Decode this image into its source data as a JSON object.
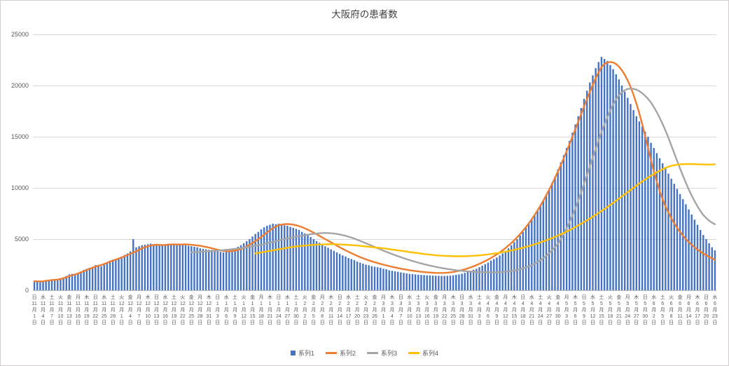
{
  "chart_data": {
    "type": "combo",
    "title": "大阪府の患者数",
    "ylim": [
      0,
      25000
    ],
    "y_ticks": [
      0,
      5000,
      10000,
      15000,
      20000,
      25000
    ],
    "n_days": 235,
    "x_label_every_days": 3,
    "month_suffix": "月",
    "day_suffix": "日",
    "gridlines": true,
    "legend_position": "bottom",
    "colors": {
      "axis_text": "#595959",
      "gridline": "#D9D9D9",
      "axis_line": "#BDBDBD",
      "background": "#FFFFFF",
      "border": "#D0CECE"
    },
    "x_ticks": {
      "weekday": [
        "日",
        "水",
        "土",
        "火",
        "金",
        "月",
        "木",
        "日",
        "水",
        "土",
        "火",
        "金",
        "月",
        "木",
        "日",
        "水",
        "土",
        "火",
        "金",
        "月",
        "木",
        "日",
        "水",
        "土",
        "火",
        "金",
        "月",
        "木",
        "日",
        "水",
        "土",
        "火",
        "金",
        "月",
        "木",
        "日",
        "水",
        "土",
        "火",
        "金",
        "月",
        "木",
        "日",
        "水",
        "土",
        "火",
        "金",
        "月",
        "木",
        "日",
        "水",
        "土",
        "火",
        "金",
        "月",
        "木",
        "日",
        "水",
        "土",
        "火",
        "金",
        "月",
        "木",
        "日",
        "水",
        "土",
        "火",
        "金",
        "月",
        "木",
        "日",
        "水",
        "土",
        "火",
        "金",
        "月",
        "木",
        "日",
        "水"
      ],
      "month": [
        11,
        11,
        11,
        11,
        11,
        11,
        11,
        11,
        11,
        11,
        12,
        12,
        12,
        12,
        12,
        12,
        12,
        12,
        12,
        12,
        12,
        1,
        1,
        1,
        1,
        1,
        1,
        1,
        1,
        1,
        1,
        2,
        2,
        2,
        2,
        2,
        2,
        2,
        2,
        2,
        3,
        3,
        3,
        3,
        3,
        3,
        3,
        3,
        3,
        3,
        3,
        4,
        4,
        4,
        4,
        4,
        4,
        4,
        4,
        4,
        4,
        5,
        5,
        5,
        5,
        5,
        5,
        5,
        5,
        5,
        5,
        6,
        6,
        6,
        6,
        6,
        6,
        6,
        6
      ],
      "day": [
        1,
        4,
        7,
        10,
        13,
        16,
        19,
        22,
        25,
        28,
        1,
        4,
        7,
        10,
        13,
        16,
        19,
        22,
        25,
        28,
        31,
        3,
        6,
        9,
        12,
        15,
        18,
        21,
        24,
        27,
        30,
        2,
        5,
        8,
        11,
        14,
        17,
        20,
        23,
        26,
        1,
        4,
        7,
        10,
        13,
        16,
        19,
        22,
        25,
        28,
        31,
        3,
        6,
        9,
        12,
        15,
        18,
        21,
        24,
        27,
        30,
        3,
        6,
        9,
        12,
        15,
        18,
        21,
        24,
        27,
        30,
        2,
        5,
        8,
        11,
        14,
        17,
        20,
        23
      ]
    },
    "series": [
      {
        "name": "系列1",
        "type": "bar",
        "color": "#4472C4",
        "start": 0,
        "values": [
          900,
          850,
          800,
          870,
          950,
          1000,
          1050,
          1000,
          980,
          1100,
          1250,
          1400,
          1550,
          1600,
          1550,
          1700,
          1850,
          2000,
          2100,
          2200,
          2300,
          2450,
          2400,
          2350,
          2600,
          2750,
          2900,
          3000,
          3050,
          3150,
          3300,
          3450,
          3600,
          3800,
          5000,
          4200,
          4300,
          4400,
          4450,
          4500,
          4550,
          4500,
          4450,
          4400,
          4450,
          4500,
          4550,
          4500,
          4450,
          4500,
          4550,
          4500,
          4400,
          4350,
          4300,
          4250,
          4200,
          4100,
          4050,
          4000,
          3950,
          3950,
          3900,
          3800,
          3750,
          3700,
          3750,
          3850,
          3950,
          4100,
          4250,
          4400,
          4600,
          4800,
          5000,
          5250,
          5500,
          5700,
          5950,
          6150,
          6300,
          6400,
          6500,
          6450,
          6500,
          6400,
          6350,
          6300,
          6200,
          6100,
          6000,
          5900,
          5700,
          5550,
          5400,
          5200,
          5000,
          4800,
          4650,
          4450,
          4300,
          4150,
          4000,
          3850,
          3700,
          3550,
          3400,
          3300,
          3150,
          3050,
          2950,
          2800,
          2700,
          2600,
          2500,
          2450,
          2350,
          2300,
          2250,
          2200,
          2100,
          2050,
          1950,
          1900,
          1850,
          1800,
          1750,
          1700,
          1650,
          1600,
          1580,
          1550,
          1520,
          1500,
          1480,
          1460,
          1450,
          1430,
          1420,
          1410,
          1400,
          1400,
          1410,
          1430,
          1460,
          1500,
          1550,
          1620,
          1700,
          1800,
          1900,
          2000,
          2100,
          2250,
          2400,
          2550,
          2700,
          2900,
          3050,
          3200,
          3400,
          3600,
          3850,
          4100,
          4400,
          4700,
          5000,
          5350,
          5700,
          6100,
          6500,
          6900,
          7300,
          7800,
          8300,
          8800,
          9300,
          9900,
          10500,
          11100,
          11800,
          12500,
          13200,
          13900,
          14600,
          15400,
          16200,
          17000,
          17800,
          18700,
          19500,
          20300,
          21000,
          21700,
          22300,
          22800,
          22600,
          22400,
          22000,
          21600,
          21100,
          20600,
          20000,
          19400,
          18800,
          18200,
          17600,
          17000,
          16500,
          16000,
          15500,
          15000,
          14400,
          13900,
          13400,
          12900,
          12400,
          11900,
          11400,
          10900,
          10400,
          9900,
          9400,
          8900,
          8400,
          7900,
          7400,
          6900,
          6400,
          5900,
          5400,
          5000,
          4600,
          4200,
          3900
        ]
      },
      {
        "name": "系列2",
        "type": "line",
        "color": "#ED7D31",
        "start": 0,
        "values": [
          900,
          880,
          870,
          880,
          920,
          960,
          1000,
          1020,
          1050,
          1100,
          1180,
          1280,
          1380,
          1470,
          1550,
          1640,
          1750,
          1870,
          1980,
          2090,
          2200,
          2320,
          2400,
          2470,
          2570,
          2680,
          2790,
          2900,
          3000,
          3100,
          3200,
          3320,
          3440,
          3560,
          3680,
          3800,
          3950,
          4100,
          4200,
          4300,
          4380,
          4420,
          4450,
          4430,
          4420,
          4430,
          4450,
          4470,
          4490,
          4480,
          4470,
          4480,
          4490,
          4470,
          4440,
          4410,
          4380,
          4340,
          4290,
          4230,
          4170,
          4100,
          4030,
          3960,
          3900,
          3850,
          3820,
          3810,
          3830,
          3870,
          3940,
          4030,
          4150,
          4290,
          4450,
          4620,
          4800,
          5000,
          5200,
          5420,
          5650,
          5870,
          6060,
          6220,
          6340,
          6420,
          6460,
          6470,
          6450,
          6410,
          6350,
          6270,
          6170,
          6050,
          5920,
          5780,
          5630,
          5480,
          5320,
          5160,
          5000,
          4840,
          4680,
          4520,
          4360,
          4200,
          4050,
          3900,
          3760,
          3620,
          3490,
          3360,
          3240,
          3130,
          3020,
          2920,
          2830,
          2740,
          2660,
          2580,
          2500,
          2430,
          2360,
          2290,
          2230,
          2170,
          2110,
          2060,
          2010,
          1960,
          1920,
          1880,
          1840,
          1810,
          1780,
          1750,
          1730,
          1710,
          1700,
          1690,
          1690,
          1700,
          1720,
          1750,
          1790,
          1840,
          1900,
          1970,
          2050,
          2140,
          2240,
          2350,
          2460,
          2580,
          2710,
          2850,
          3000,
          3160,
          3330,
          3510,
          3700,
          3910,
          4130,
          4370,
          4620,
          4890,
          5180,
          5490,
          5820,
          6170,
          6540,
          6940,
          7360,
          7800,
          8270,
          8760,
          9280,
          9820,
          10390,
          10980,
          11600,
          12240,
          12900,
          13580,
          14280,
          15000,
          15730,
          16470,
          17210,
          17950,
          18680,
          19390,
          20070,
          20710,
          21290,
          21800,
          22100,
          22250,
          22300,
          22250,
          22100,
          21850,
          21500,
          21050,
          20500,
          19850,
          19100,
          18250,
          17300,
          16250,
          15100,
          13900,
          12700,
          11600,
          10600,
          9700,
          8900,
          8200,
          7600,
          7050,
          6550,
          6100,
          5700,
          5340,
          5010,
          4710,
          4440,
          4200,
          3980,
          3780,
          3600,
          3430,
          3270,
          3120,
          2980
        ]
      },
      {
        "name": "系列3",
        "type": "line",
        "color": "#A5A5A5",
        "start": 54,
        "values": [
          3700,
          3720,
          3740,
          3760,
          3780,
          3800,
          3820,
          3840,
          3860,
          3880,
          3900,
          3920,
          3950,
          3980,
          4010,
          4040,
          4080,
          4120,
          4160,
          4200,
          4250,
          4300,
          4350,
          4400,
          4460,
          4520,
          4580,
          4650,
          4720,
          4790,
          4860,
          4930,
          5000,
          5060,
          5120,
          5180,
          5230,
          5280,
          5330,
          5380,
          5430,
          5470,
          5510,
          5540,
          5570,
          5590,
          5600,
          5590,
          5570,
          5540,
          5500,
          5450,
          5390,
          5320,
          5240,
          5150,
          5050,
          4940,
          4830,
          4710,
          4590,
          4470,
          4350,
          4230,
          4110,
          3990,
          3870,
          3760,
          3650,
          3540,
          3430,
          3330,
          3230,
          3130,
          3040,
          2950,
          2860,
          2780,
          2700,
          2620,
          2550,
          2480,
          2410,
          2350,
          2290,
          2230,
          2180,
          2130,
          2080,
          2040,
          2000,
          1960,
          1930,
          1900,
          1870,
          1850,
          1830,
          1810,
          1790,
          1780,
          1770,
          1760,
          1750,
          1750,
          1750,
          1760,
          1770,
          1790,
          1810,
          1840,
          1880,
          1930,
          1990,
          2060,
          2140,
          2230,
          2340,
          2460,
          2600,
          2760,
          2940,
          3140,
          3370,
          3620,
          3900,
          4210,
          4550,
          5000,
          5500,
          6050,
          6650,
          7300,
          8000,
          8750,
          9550,
          10400,
          11250,
          12100,
          12950,
          13800,
          14650,
          15450,
          16200,
          16900,
          17550,
          18150,
          18650,
          19050,
          19350,
          19550,
          19670,
          19700,
          19680,
          19600,
          19450,
          19250,
          19000,
          18700,
          18350,
          17900,
          17400,
          16850,
          16250,
          15600,
          14900,
          14150,
          13400,
          12650,
          11900,
          11200,
          10500,
          9850,
          9250,
          8700,
          8200,
          7750,
          7350,
          7050,
          6800,
          6600,
          6450
        ]
      },
      {
        "name": "系列4",
        "type": "line",
        "color": "#FFC000",
        "start": 76,
        "values": [
          3600,
          3650,
          3700,
          3750,
          3800,
          3850,
          3900,
          3950,
          4000,
          4050,
          4100,
          4150,
          4200,
          4240,
          4280,
          4310,
          4340,
          4370,
          4400,
          4420,
          4440,
          4460,
          4470,
          4480,
          4490,
          4500,
          4500,
          4500,
          4490,
          4480,
          4470,
          4450,
          4430,
          4410,
          4390,
          4370,
          4340,
          4310,
          4280,
          4250,
          4220,
          4190,
          4160,
          4130,
          4100,
          4060,
          4020,
          3980,
          3940,
          3900,
          3860,
          3820,
          3780,
          3740,
          3700,
          3660,
          3620,
          3580,
          3540,
          3510,
          3480,
          3450,
          3420,
          3400,
          3380,
          3360,
          3350,
          3340,
          3330,
          3320,
          3320,
          3320,
          3330,
          3340,
          3350,
          3370,
          3390,
          3410,
          3440,
          3470,
          3500,
          3540,
          3580,
          3620,
          3670,
          3720,
          3770,
          3830,
          3890,
          3950,
          4020,
          4090,
          4160,
          4240,
          4320,
          4400,
          4490,
          4580,
          4680,
          4780,
          4880,
          4990,
          5100,
          5220,
          5340,
          5470,
          5600,
          5740,
          5880,
          6030,
          6180,
          6340,
          6500,
          6670,
          6840,
          7010,
          7190,
          7370,
          7560,
          7750,
          7940,
          8140,
          8340,
          8540,
          8750,
          8960,
          9170,
          9380,
          9590,
          9800,
          10010,
          10220,
          10430,
          10630,
          10830,
          11020,
          11200,
          11370,
          11530,
          11680,
          11820,
          11950,
          12060,
          12150,
          12220,
          12270,
          12300,
          12320,
          12330,
          12330,
          12330,
          12320,
          12310,
          12300,
          12290,
          12280,
          12280,
          12290,
          12300
        ]
      }
    ]
  }
}
